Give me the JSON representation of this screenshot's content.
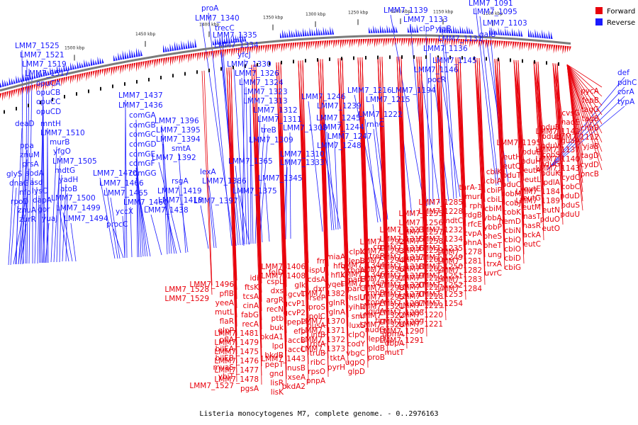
{
  "caption": "Listeria monocytogenes M7, complete genome. - 0..2976163",
  "legend": [
    {
      "label": "Forward",
      "color": "#e8000b"
    },
    {
      "label": "Reverse",
      "color": "#1a1aff"
    }
  ],
  "colors": {
    "forward": "#e8000b",
    "reverse": "#1a1aff",
    "backbone": "#7a7a7a"
  },
  "ticks": [
    "1100 kbp",
    "1150 kbp",
    "1200 kbp",
    "1250 kbp",
    "1300 kbp",
    "1350 kbp",
    "1400 kbp",
    "1450 kbp",
    "1500 kbp"
  ],
  "reverse_genes": [
    "LMM7_1525",
    "LMM7_1521",
    "LMM7_1519",
    "LMM7_1517",
    "opuCA",
    "opuCB",
    "opuCC",
    "opuCD",
    "deaD",
    "mntH",
    "LMM7_1510",
    "ppa",
    "murB",
    "znuM",
    "yfgO",
    "prsA",
    "sodA",
    "LMM7_1505",
    "glyS",
    "asd",
    "mdtG",
    "dnaG",
    "lysC",
    "yadH",
    "nfo",
    "atoB",
    "dapA",
    "rpoD",
    "LMM7_1500",
    "znuA",
    "gor",
    "LMM7_1499",
    "zurR",
    "yuaJ",
    "LMM7_1494",
    "LMM7_1437",
    "LMM7_1436",
    "comGA",
    "comGB",
    "comGC",
    "comGD",
    "comGE",
    "comGF",
    "comGG",
    "LMM7_1470",
    "LMM7_1466",
    "LMM7_1465",
    "LMM7_1460",
    "yccX",
    "procC",
    "LMM7_1396",
    "LMM7_1395",
    "LMM7_1394",
    "smtA",
    "LMM7_1392",
    "lexA",
    "LMM7_1386",
    "LMM7_1419",
    "LMM7_1418",
    "rsgA",
    "LMM7_1438",
    "LMM7_1397",
    "LMM7_1375",
    "LMM7_1365",
    "proA",
    "LMM7_1340",
    "trecC",
    "LMM7_1335",
    "LMM7_1334",
    "yfcJ",
    "LMM7_1330",
    "LMM7_1326",
    "LMM7_1324",
    "LMM7_1323",
    "LMM7_1313",
    "LMM7_1312",
    "LMM7_1311",
    "treB",
    "LMM7_1309",
    "LMM7_1310",
    "LMM7_1333",
    "LMM7_1345",
    "LMM7_1308",
    "LMM7_1246",
    "LMM7_1239",
    "LMM7_1245",
    "LMM7_1244",
    "LMM7_1247",
    "LMM7_1248",
    "LMM7_1216",
    "LMM7_1215",
    "LMM7_1222",
    "rnhC",
    "LMM7_1194",
    "LMM7_1139",
    "LMM7_1133",
    "clpP",
    "yjaB",
    "LMM7_1131",
    "LMM7_1136",
    "LMM7_1145",
    "LMM7_1146",
    "pocR",
    "LMM7_1091",
    "LMM7_1095",
    "LMM7_1103",
    "galU",
    "def",
    "pdhC",
    "corA",
    "typA"
  ],
  "forward_genes": [
    "pycA",
    "fepB",
    "tagG",
    "tagB",
    "chbB",
    "LMM7_1112",
    "yjaB",
    "tagD",
    "cydD",
    "pncB",
    "cvsG",
    "nadE",
    "LMM7_1142",
    "guaA",
    "LMM7_1137",
    "LMM7_1140",
    "LMM7_1143",
    "cydC",
    "cobC",
    "pduD",
    "pduS",
    "pduU",
    "pduB",
    "pduL",
    "pduV",
    "cobS",
    "pduG",
    "pduK",
    "pdlA",
    "LMM7_1184",
    "LMM7_1189",
    "eutN",
    "pduO",
    "eutO",
    "LMM7_1195",
    "pduE",
    "pduH",
    "eutA",
    "eutL",
    "eutE",
    "eutG",
    "eutM",
    "nasT",
    "nasR",
    "ackA",
    "eutC",
    "eutH",
    "eutQ",
    "pduT",
    "pduC",
    "cobM",
    "cobJ",
    "cobK",
    "hemD",
    "cbiN",
    "cbiQ",
    "cbiO",
    "cbiD",
    "cbiG",
    "cbiK",
    "cbiA",
    "cbiP",
    "cbiL",
    "cbiM",
    "ybbA",
    "ybbP",
    "pheS",
    "pheT",
    "ung",
    "trxA",
    "uvrC",
    "thrA-1",
    "murI",
    "rph",
    "rdgB",
    "rfcE",
    "cvpA",
    "phnA",
    "LMM7_1278",
    "LMM7_1281",
    "LMM7_1282",
    "LMM7_1283",
    "LMM7_1284",
    "LMM7_1285",
    "LMM7_1228",
    "mdtC",
    "LMM7_1232",
    "LMM7_1234",
    "LMM7_1235",
    "LMM7_1249",
    "LMM7_1250",
    "LMM7_1251",
    "LMM7_1252",
    "LMM7_1253",
    "LMM7_1254",
    "LMM7_1255",
    "LMM7_1256",
    "LMM7_1257",
    "LMM7_1258",
    "LMM7_1259",
    "LMM7_1260",
    "LMM7_1262",
    "LMM7_1214",
    "LMM7_1217",
    "LMM7_1218",
    "LMM7_1219",
    "LMM7_1220",
    "LMM7_1221",
    "LMM7_1223",
    "LMM7_1315",
    "LMM7_1316",
    "LMM7_1317",
    "LMM7_1318",
    "LMM7_1319",
    "LMM7_1320",
    "LMM7_1270",
    "LMM7_1287",
    "LMM7_1288",
    "LMM7_1289",
    "LMM7_1290",
    "LMM7_1291",
    "LMM7_1292",
    "LMM7_1293",
    "LMM7_1294",
    "LMM7_1296",
    "LMM7_1297",
    "LMM7_1298",
    "LMM7_1295",
    "LMM7_1321",
    "LMM7_1322",
    "LMM7_1328",
    "gpmA",
    "dbpA",
    "mutT",
    "crp",
    "treR",
    "LMM7_1344",
    "LMM7_1346",
    "LMM7_1347",
    "rnhB",
    "topA",
    "gidA",
    "tig",
    "nudG",
    "lepB",
    "pldB",
    "proB",
    "clpX",
    "lepB",
    "rbgA",
    "parE",
    "parC",
    "hslU",
    "yihR",
    "smf",
    "luxS",
    "clpQ",
    "codY",
    "vbgC",
    "ugpQ",
    "glpD",
    "miaA",
    "hfq",
    "hflX",
    "yqeF",
    "LMM7_1382",
    "glnR",
    "glnA",
    "LMM7_1370",
    "LMM7_1371",
    "LMM7_1372",
    "LMM7_1373",
    "tktA",
    "pyrH",
    "frr",
    "ispU",
    "cdsA",
    "dxr",
    "rseP",
    "proS",
    "polC",
    "nusA",
    "infB",
    "rbfA",
    "truB",
    "ribC",
    "rpsO",
    "pnpA",
    "LMM7_1406",
    "LMM7_1408",
    "glk",
    "gcvT",
    "gcvP1",
    "gcvP2",
    "pepP",
    "efp",
    "accB",
    "accC",
    "LMM7_1443",
    "nusB",
    "xseA",
    "bkdA2",
    "folD",
    "cspL",
    "dxs",
    "argR",
    "recN",
    "ptb",
    "buk",
    "bkdA1",
    "lpd",
    "bkdB",
    "pepT",
    "gnd",
    "lisR",
    "lisK",
    "idi",
    "ftsK",
    "tcsA",
    "cinA",
    "fabG",
    "recA",
    "LMM7_1481",
    "LMM7_1479",
    "LMM7_1475",
    "LMM7_1476",
    "LMM7_1477",
    "LMM7_1478",
    "pgsA",
    "LMM7_1496",
    "pflB",
    "yeeA",
    "mutL",
    "flaR",
    "glpP",
    "pflA",
    "bilEA",
    "bilEB",
    "mvaS",
    "ybiT",
    "LMM7_1527",
    "LMM7_1528",
    "LMM7_1529"
  ]
}
